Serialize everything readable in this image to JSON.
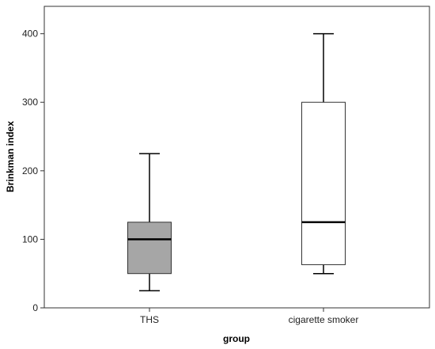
{
  "chart_data": {
    "type": "box",
    "xlabel": "group",
    "ylabel": "Brinkman index",
    "ylim": [
      0,
      440
    ],
    "yticks": [
      0,
      100,
      200,
      300,
      400
    ],
    "categories": [
      "THS",
      "cigarette smoker"
    ],
    "boxes": [
      {
        "category": "THS",
        "min": 25,
        "q1": 50,
        "median": 100,
        "q3": 125,
        "max": 225,
        "fill": "#a6a6a6"
      },
      {
        "category": "cigarette smoker",
        "min": 50,
        "q1": 63,
        "median": 125,
        "q3": 300,
        "max": 400,
        "fill": "#ffffff"
      }
    ],
    "grid": false,
    "legend": "none"
  }
}
